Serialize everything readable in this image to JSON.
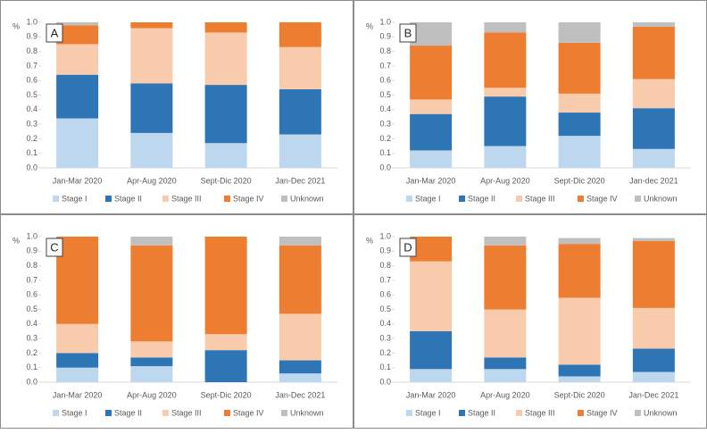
{
  "chart_data": [
    {
      "type": "bar",
      "stacked": true,
      "panel_label": "A",
      "y_label": "%",
      "categories": [
        "Jan-Mar 2020",
        "Apr-Aug 2020",
        "Sept-Dic 2020",
        "Jan-Dec 2021"
      ],
      "series": [
        {
          "name": "Stage I",
          "color": "#bdd7ee",
          "values": [
            0.34,
            0.24,
            0.17,
            0.23
          ]
        },
        {
          "name": "Stage II",
          "color": "#2e75b6",
          "values": [
            0.3,
            0.34,
            0.4,
            0.31
          ]
        },
        {
          "name": "Stage III",
          "color": "#f8cbad",
          "values": [
            0.21,
            0.38,
            0.36,
            0.29
          ]
        },
        {
          "name": "Stage IV",
          "color": "#ed7d31",
          "values": [
            0.13,
            0.04,
            0.07,
            0.17
          ]
        },
        {
          "name": "Unknown",
          "color": "#bfbfbf",
          "values": [
            0.02,
            0,
            0,
            0
          ]
        }
      ],
      "ylim": [
        0,
        1
      ],
      "yticks": [
        {
          "value": 0,
          "label": "0.0"
        },
        0.1,
        0.2,
        0.3,
        0.4,
        0.5,
        0.6,
        0.7,
        0.8,
        0.9,
        {
          "value": 1,
          "label": "1.0"
        }
      ]
    },
    {
      "type": "bar",
      "stacked": true,
      "panel_label": "B",
      "y_label": "%",
      "categories": [
        "Jan-Mar 2020",
        "Apr-Aug 2020",
        "Sept-Dic 2020",
        "Jan-dec 2021"
      ],
      "series": [
        {
          "name": "Stage I",
          "color": "#bdd7ee",
          "values": [
            0.12,
            0.15,
            0.22,
            0.13
          ]
        },
        {
          "name": "Stage II",
          "color": "#2e75b6",
          "values": [
            0.25,
            0.34,
            0.16,
            0.28
          ]
        },
        {
          "name": "Stage III",
          "color": "#f8cbad",
          "values": [
            0.1,
            0.06,
            0.13,
            0.2
          ]
        },
        {
          "name": "Stage IV",
          "color": "#ed7d31",
          "values": [
            0.37,
            0.38,
            0.35,
            0.36
          ]
        },
        {
          "name": "Unknown",
          "color": "#bfbfbf",
          "values": [
            0.16,
            0.07,
            0.14,
            0.03
          ]
        }
      ],
      "ylim": [
        0,
        1
      ],
      "yticks": [
        {
          "value": 0,
          "label": "0.0"
        },
        0.1,
        0.2,
        0.3,
        0.4,
        0.5,
        0.6,
        0.7,
        0.8,
        0.9,
        {
          "value": 1,
          "label": "1.0"
        }
      ]
    },
    {
      "type": "bar",
      "stacked": true,
      "panel_label": "C",
      "y_label": "%",
      "categories": [
        "Jan-Mar 2020",
        "Apr-Aug 2020",
        "Sept-Dic 2020",
        "Jan-Dec 2021"
      ],
      "series": [
        {
          "name": "Stage I",
          "color": "#bdd7ee",
          "values": [
            0.1,
            0.11,
            0,
            0.06
          ]
        },
        {
          "name": "Stage II",
          "color": "#2e75b6",
          "values": [
            0.1,
            0.06,
            0.22,
            0.09
          ]
        },
        {
          "name": "Stage III",
          "color": "#f8cbad",
          "values": [
            0.2,
            0.11,
            0.11,
            0.32
          ]
        },
        {
          "name": "Stage IV",
          "color": "#ed7d31",
          "values": [
            0.6,
            0.66,
            0.67,
            0.47
          ]
        },
        {
          "name": "Unknown",
          "color": "#bfbfbf",
          "values": [
            0,
            0.06,
            0,
            0.06
          ]
        }
      ],
      "ylim": [
        0,
        1
      ],
      "yticks": [
        {
          "value": 0,
          "label": "0.0"
        },
        0.1,
        0.2,
        0.3,
        0.4,
        0.5,
        0.6,
        0.7,
        0.8,
        0.9,
        {
          "value": 1,
          "label": "1.0"
        }
      ]
    },
    {
      "type": "bar",
      "stacked": true,
      "panel_label": "D",
      "y_label": "%",
      "categories": [
        "Jan-Mar 2020",
        "Apr-Aug 2020",
        "Sept-Dic 2020",
        "Jan-Dec 2021"
      ],
      "series": [
        {
          "name": "Stage I",
          "color": "#bdd7ee",
          "values": [
            0.09,
            0.09,
            0.04,
            0.07
          ]
        },
        {
          "name": "Stage II",
          "color": "#2e75b6",
          "values": [
            0.26,
            0.08,
            0.08,
            0.16
          ]
        },
        {
          "name": "Stage III",
          "color": "#f8cbad",
          "values": [
            0.48,
            0.33,
            0.46,
            0.28
          ]
        },
        {
          "name": "Stage IV",
          "color": "#ed7d31",
          "values": [
            0.17,
            0.44,
            0.37,
            0.46
          ]
        },
        {
          "name": "Unknown",
          "color": "#bfbfbf",
          "values": [
            0,
            0.06,
            0.04,
            0.02
          ]
        }
      ],
      "ylim": [
        0,
        1
      ],
      "yticks": [
        {
          "value": 0,
          "label": "0.0"
        },
        0.1,
        0.2,
        0.3,
        0.4,
        0.5,
        0.6,
        0.7,
        0.8,
        0.9,
        {
          "value": 1,
          "label": "1.0"
        }
      ]
    }
  ]
}
